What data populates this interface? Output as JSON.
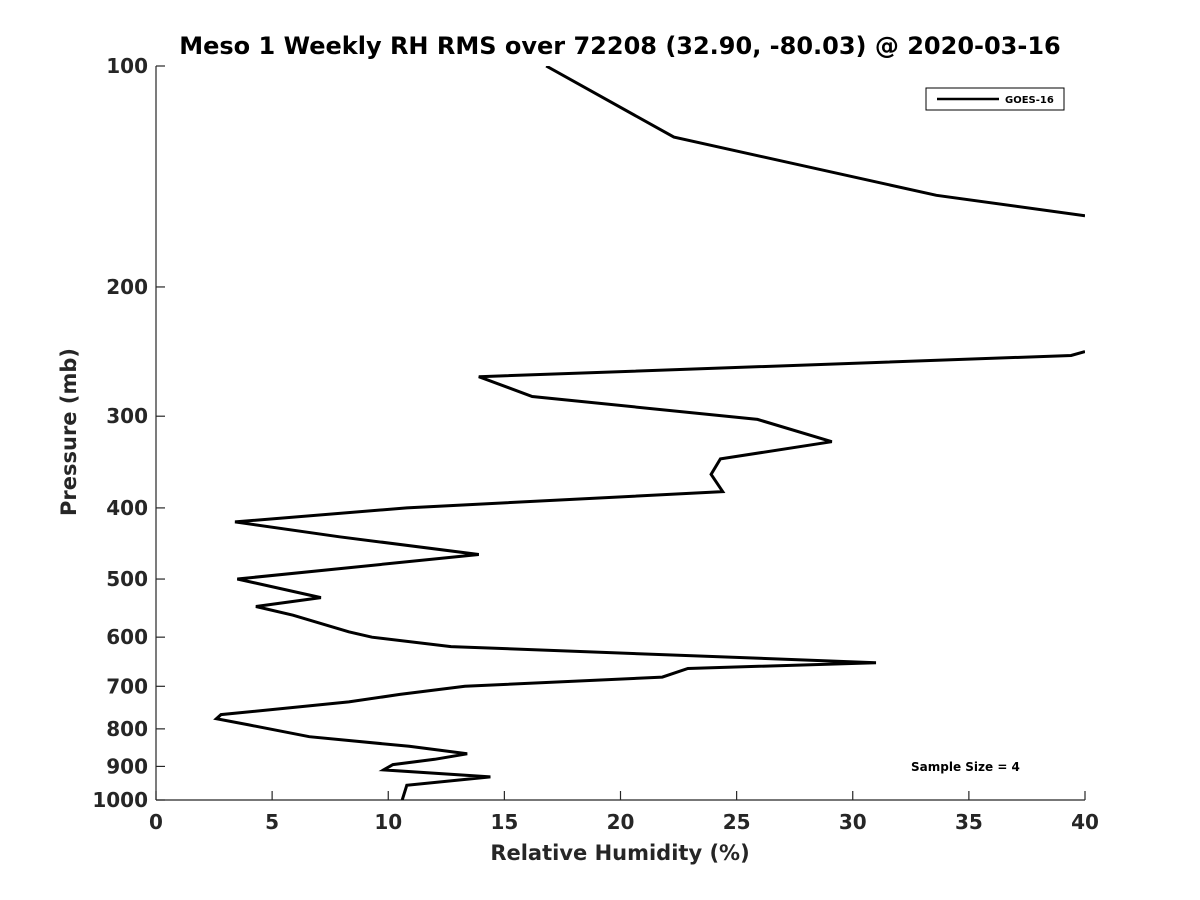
{
  "chart_data": {
    "type": "line",
    "title": "Meso 1 Weekly RH RMS over 72208 (32.90, -80.03) @ 2020-03-16",
    "xlabel": "Relative Humidity (%)",
    "ylabel": "Pressure (mb)",
    "xlim": [
      0,
      40
    ],
    "ylim": [
      100,
      1000
    ],
    "yscale": "log",
    "yreversed": true,
    "xticks": [
      0,
      5,
      10,
      15,
      20,
      25,
      30,
      35,
      40
    ],
    "xtick_labels": [
      "0",
      "5",
      "10",
      "15",
      "20",
      "25",
      "30",
      "35",
      "40"
    ],
    "yticks": [
      100,
      200,
      300,
      400,
      500,
      600,
      700,
      800,
      900,
      1000
    ],
    "ytick_labels": [
      "100",
      "200",
      "300",
      "400",
      "500",
      "600",
      "700",
      "800",
      "900",
      "1000"
    ],
    "grid": false,
    "legend": {
      "position": "top-right",
      "entries": [
        "GOES-16"
      ]
    },
    "annotations": [
      "Sample Size = 4"
    ],
    "series": [
      {
        "name": "GOES-16",
        "color": "#000000",
        "segments": [
          {
            "x": [
              16.8,
              22.3,
              33.6,
              40.0
            ],
            "y": [
              100,
              125,
              150,
              160
            ]
          },
          {
            "x": [
              40.0,
              39.4,
              13.9,
              16.2,
              25.9,
              29.1,
              24.3,
              23.9,
              24.4,
              10.8,
              3.4,
              7.9,
              13.9,
              3.5,
              7.1,
              4.3,
              5.9,
              8.3,
              9.3,
              12.7,
              31.0,
              22.9,
              21.8,
              13.3,
              10.5,
              8.3,
              2.8,
              2.6,
              4.0,
              6.6,
              10.9,
              13.4,
              12.0,
              10.2,
              9.8,
              14.4,
              10.8,
              10.6
            ],
            "y": [
              245,
              248,
              265,
              282,
              303,
              325,
              343,
              360,
              380,
              400,
              418,
              438,
              463,
              500,
              530,
              545,
              560,
              590,
              600,
              618,
              650,
              662,
              680,
              700,
              718,
              735,
              765,
              775,
              790,
              820,
              845,
              865,
              880,
              895,
              910,
              930,
              955,
              1000
            ]
          }
        ]
      }
    ]
  }
}
